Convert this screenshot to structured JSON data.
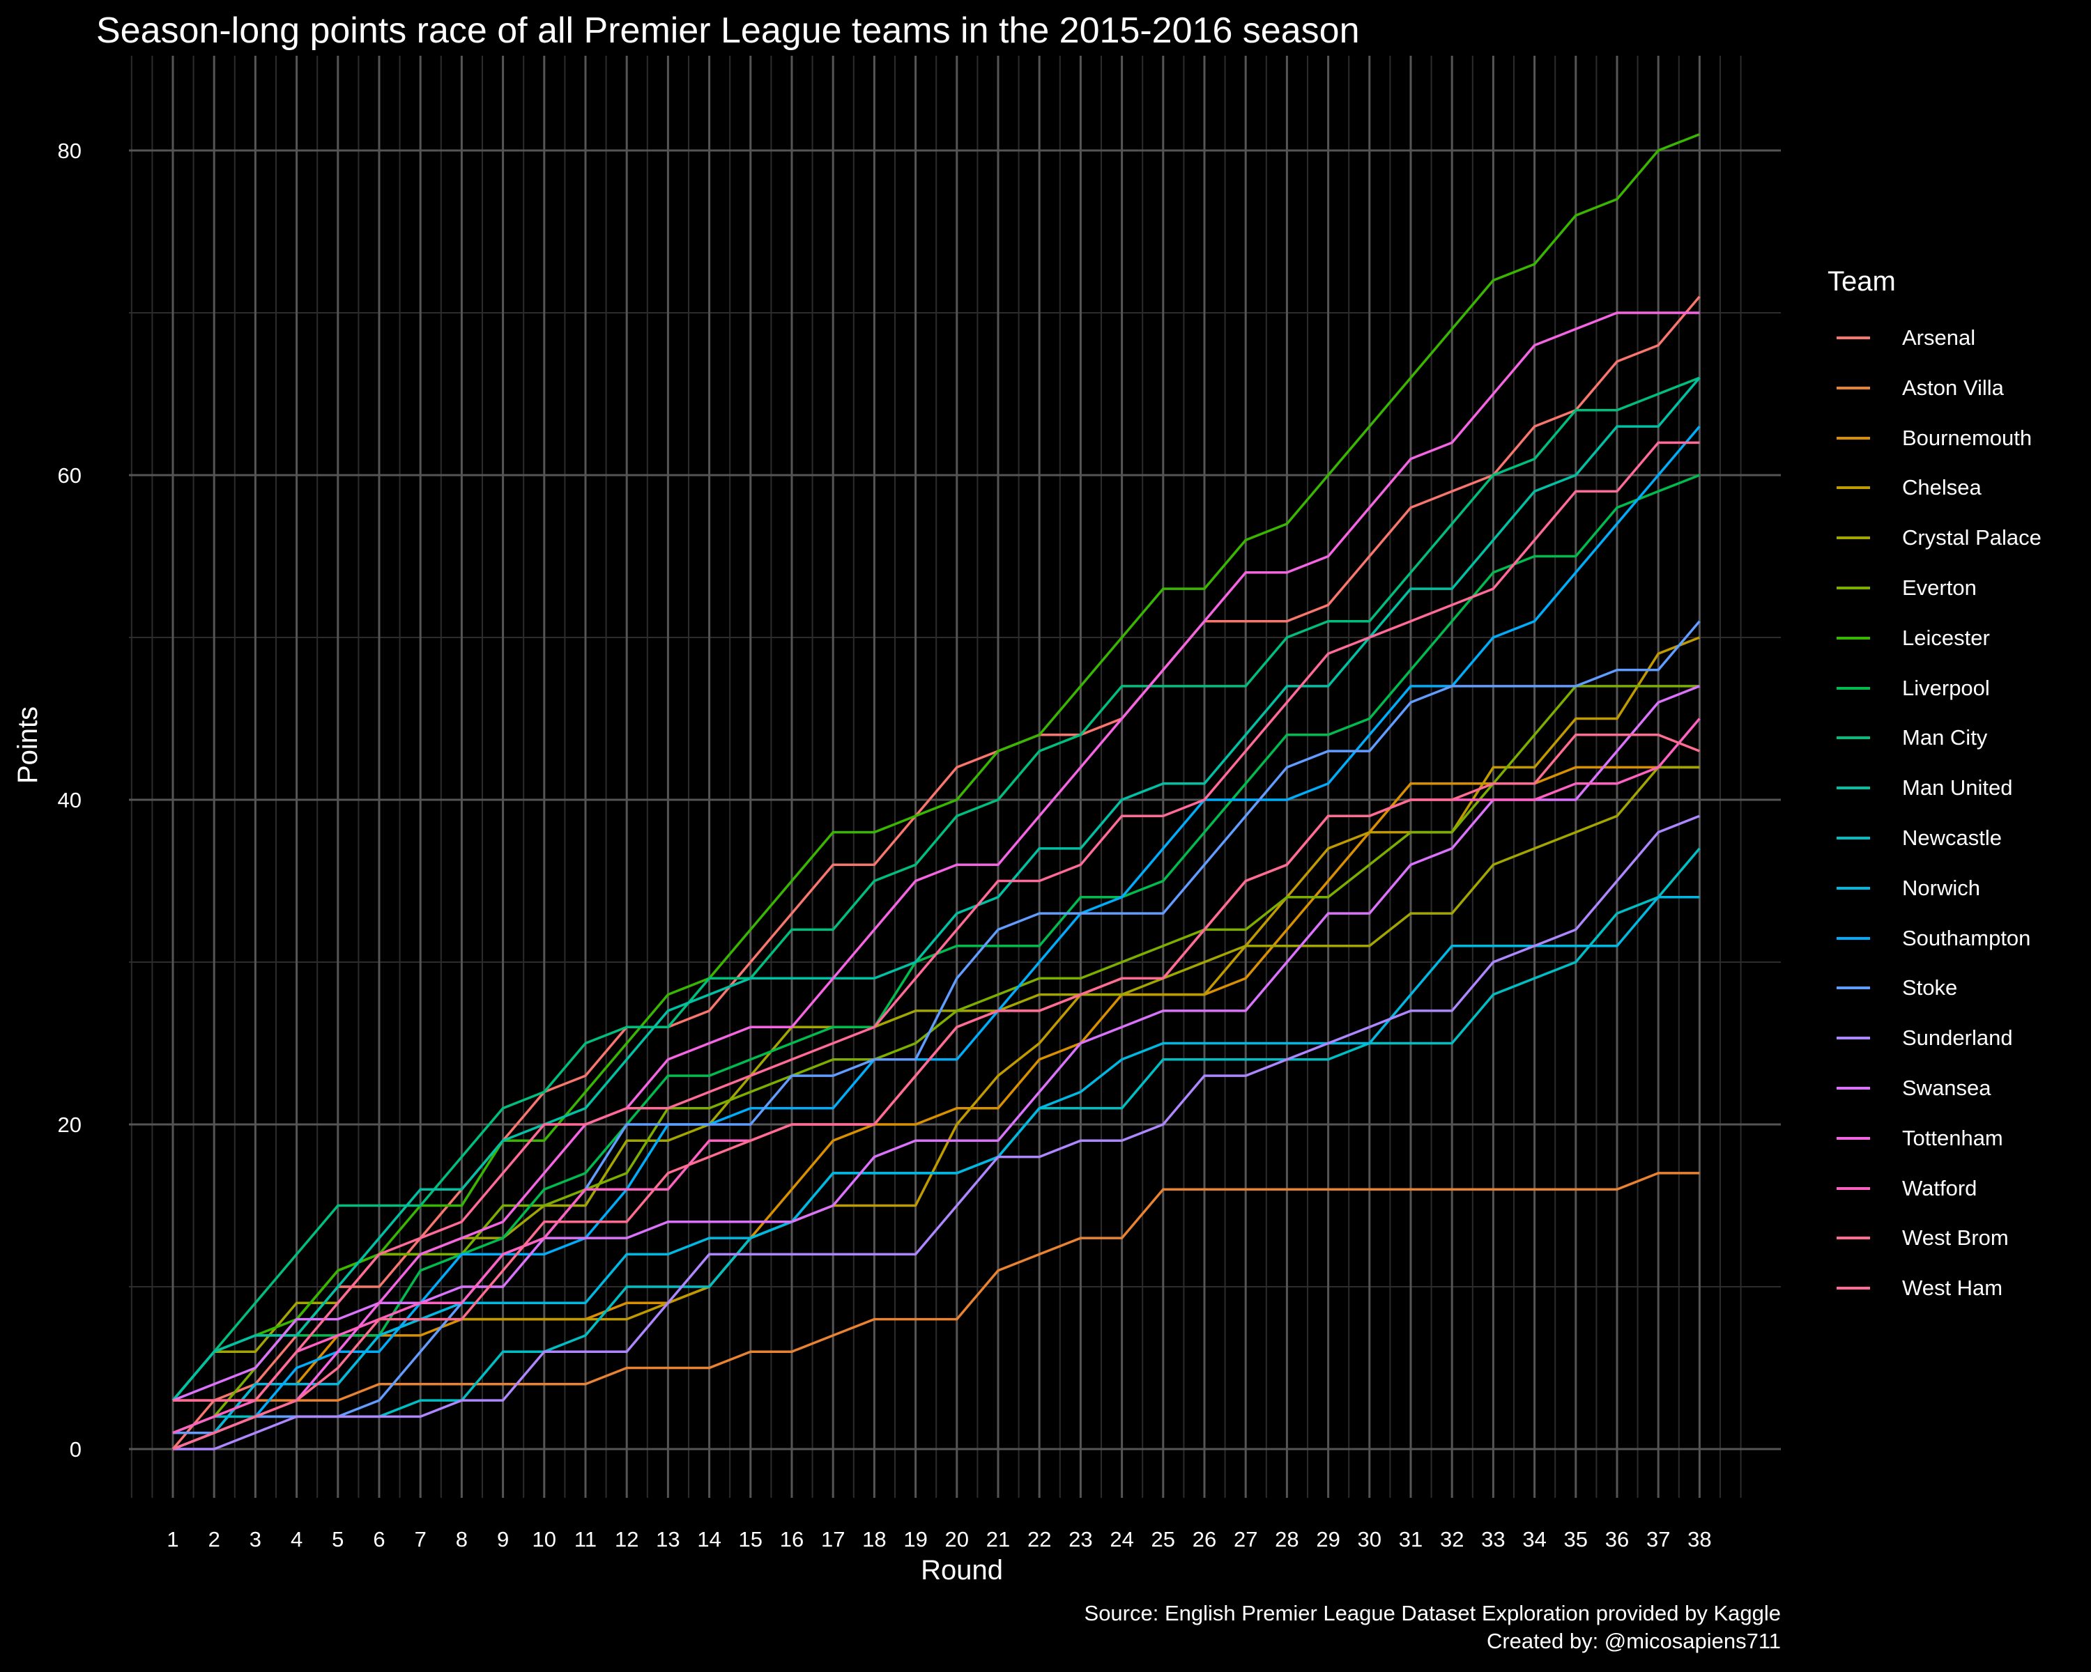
{
  "chart_data": {
    "type": "line",
    "title": "Season-long points race of all Premier League teams in the 2015-2016 season",
    "xlabel": "Round",
    "ylabel": "Points",
    "legend_title": "Team",
    "legend_position": "right",
    "grid": true,
    "xlim": [
      1,
      38
    ],
    "ylim": [
      0,
      81
    ],
    "y_ticks": [
      0,
      20,
      40,
      60,
      80
    ],
    "x": [
      1,
      2,
      3,
      4,
      5,
      6,
      7,
      8,
      9,
      10,
      11,
      12,
      13,
      14,
      15,
      16,
      17,
      18,
      19,
      20,
      21,
      22,
      23,
      24,
      25,
      26,
      27,
      28,
      29,
      30,
      31,
      32,
      33,
      34,
      35,
      36,
      37,
      38
    ],
    "series": [
      {
        "name": "Arsenal",
        "color": "#F8766D",
        "values": [
          0,
          3,
          4,
          7,
          10,
          10,
          13,
          16,
          19,
          22,
          23,
          26,
          26,
          27,
          30,
          33,
          36,
          36,
          39,
          42,
          43,
          44,
          44,
          45,
          48,
          51,
          51,
          51,
          52,
          55,
          58,
          59,
          60,
          63,
          64,
          67,
          68,
          71
        ]
      },
      {
        "name": "Aston Villa",
        "color": "#EA8331",
        "values": [
          3,
          3,
          3,
          3,
          3,
          4,
          4,
          4,
          4,
          4,
          4,
          5,
          5,
          5,
          6,
          6,
          7,
          8,
          8,
          8,
          11,
          12,
          13,
          13,
          16,
          16,
          16,
          16,
          16,
          16,
          16,
          16,
          16,
          16,
          16,
          16,
          17,
          17
        ]
      },
      {
        "name": "Bournemouth",
        "color": "#D89000",
        "values": [
          0,
          1,
          4,
          4,
          7,
          7,
          7,
          8,
          8,
          8,
          8,
          9,
          9,
          10,
          13,
          16,
          19,
          20,
          20,
          21,
          21,
          24,
          25,
          28,
          28,
          28,
          29,
          32,
          35,
          38,
          41,
          41,
          41,
          41,
          42,
          42,
          42,
          42
        ]
      },
      {
        "name": "Chelsea",
        "color": "#C09B00",
        "values": [
          1,
          1,
          4,
          4,
          4,
          7,
          8,
          8,
          8,
          8,
          8,
          8,
          9,
          10,
          13,
          14,
          15,
          15,
          15,
          20,
          23,
          25,
          28,
          28,
          28,
          28,
          31,
          34,
          37,
          38,
          38,
          38,
          42,
          42,
          45,
          45,
          49,
          50
        ]
      },
      {
        "name": "Crystal Palace",
        "color": "#A3A500",
        "values": [
          3,
          6,
          6,
          9,
          9,
          12,
          12,
          13,
          13,
          15,
          15,
          19,
          19,
          20,
          23,
          26,
          26,
          26,
          27,
          27,
          27,
          28,
          28,
          28,
          29,
          30,
          31,
          31,
          31,
          31,
          33,
          33,
          36,
          37,
          38,
          39,
          42,
          42
        ]
      },
      {
        "name": "Everton",
        "color": "#7CAE00",
        "values": [
          1,
          2,
          5,
          8,
          11,
          12,
          12,
          12,
          15,
          15,
          16,
          17,
          21,
          21,
          22,
          23,
          24,
          24,
          25,
          27,
          28,
          29,
          29,
          30,
          31,
          32,
          32,
          34,
          34,
          36,
          38,
          38,
          41,
          44,
          47,
          47,
          47,
          47
        ]
      },
      {
        "name": "Leicester",
        "color": "#39B600",
        "values": [
          3,
          6,
          7,
          8,
          11,
          12,
          15,
          15,
          19,
          19,
          22,
          25,
          28,
          29,
          32,
          35,
          38,
          38,
          39,
          40,
          43,
          44,
          47,
          50,
          53,
          53,
          56,
          57,
          60,
          63,
          66,
          69,
          72,
          73,
          76,
          77,
          80,
          81
        ]
      },
      {
        "name": "Liverpool",
        "color": "#00BB4E",
        "values": [
          3,
          6,
          7,
          7,
          7,
          7,
          11,
          12,
          13,
          16,
          17,
          20,
          23,
          23,
          24,
          25,
          26,
          26,
          30,
          31,
          31,
          31,
          34,
          34,
          35,
          38,
          41,
          44,
          44,
          45,
          48,
          51,
          54,
          55,
          55,
          58,
          59,
          60
        ]
      },
      {
        "name": "Man City",
        "color": "#00BF7D",
        "values": [
          3,
          6,
          9,
          12,
          15,
          15,
          15,
          18,
          21,
          22,
          25,
          26,
          26,
          29,
          29,
          32,
          32,
          35,
          36,
          39,
          40,
          43,
          44,
          47,
          47,
          47,
          47,
          50,
          51,
          51,
          54,
          57,
          60,
          61,
          64,
          64,
          65,
          66
        ]
      },
      {
        "name": "Man United",
        "color": "#00C1A3",
        "values": [
          3,
          6,
          7,
          7,
          10,
          13,
          16,
          16,
          19,
          20,
          21,
          24,
          27,
          28,
          29,
          29,
          29,
          29,
          30,
          33,
          34,
          37,
          37,
          40,
          41,
          41,
          44,
          47,
          47,
          50,
          53,
          53,
          56,
          59,
          60,
          63,
          63,
          66
        ]
      },
      {
        "name": "Newcastle",
        "color": "#00BFC4",
        "values": [
          1,
          2,
          2,
          2,
          2,
          2,
          3,
          3,
          6,
          6,
          7,
          10,
          10,
          10,
          13,
          14,
          17,
          17,
          17,
          17,
          18,
          21,
          21,
          21,
          24,
          24,
          24,
          24,
          24,
          25,
          25,
          25,
          28,
          29,
          30,
          33,
          34,
          37
        ]
      },
      {
        "name": "Norwich",
        "color": "#00B9E3",
        "values": [
          0,
          1,
          4,
          4,
          4,
          7,
          8,
          9,
          9,
          9,
          9,
          12,
          12,
          13,
          13,
          14,
          17,
          17,
          17,
          17,
          18,
          21,
          22,
          24,
          25,
          25,
          25,
          25,
          25,
          25,
          28,
          31,
          31,
          31,
          31,
          31,
          34,
          34
        ]
      },
      {
        "name": "Southampton",
        "color": "#00ADFA",
        "values": [
          0,
          1,
          2,
          5,
          6,
          6,
          9,
          12,
          12,
          12,
          13,
          16,
          20,
          20,
          21,
          21,
          21,
          24,
          24,
          24,
          27,
          30,
          33,
          34,
          37,
          40,
          40,
          40,
          41,
          44,
          47,
          47,
          50,
          51,
          54,
          57,
          60,
          63
        ]
      },
      {
        "name": "Stoke",
        "color": "#619CFF",
        "values": [
          1,
          1,
          2,
          2,
          2,
          3,
          6,
          9,
          12,
          13,
          16,
          20,
          20,
          20,
          20,
          23,
          23,
          24,
          24,
          29,
          32,
          33,
          33,
          33,
          33,
          36,
          39,
          42,
          43,
          43,
          46,
          47,
          47,
          47,
          47,
          48,
          48,
          51
        ]
      },
      {
        "name": "Sunderland",
        "color": "#AE87FF",
        "values": [
          0,
          0,
          1,
          2,
          2,
          2,
          2,
          3,
          3,
          6,
          6,
          6,
          9,
          12,
          12,
          12,
          12,
          12,
          12,
          15,
          18,
          18,
          19,
          19,
          20,
          23,
          23,
          24,
          25,
          26,
          27,
          27,
          30,
          31,
          32,
          35,
          38,
          39
        ]
      },
      {
        "name": "Swansea",
        "color": "#DB72FB",
        "values": [
          3,
          4,
          5,
          8,
          8,
          9,
          9,
          10,
          10,
          13,
          13,
          13,
          14,
          14,
          14,
          14,
          15,
          18,
          19,
          19,
          19,
          22,
          25,
          26,
          27,
          27,
          27,
          30,
          33,
          33,
          36,
          37,
          40,
          40,
          40,
          43,
          46,
          47
        ]
      },
      {
        "name": "Tottenham",
        "color": "#F564E3",
        "values": [
          0,
          1,
          2,
          3,
          6,
          9,
          12,
          13,
          14,
          17,
          20,
          21,
          24,
          25,
          26,
          26,
          29,
          32,
          35,
          36,
          36,
          39,
          42,
          45,
          48,
          51,
          54,
          54,
          55,
          58,
          61,
          62,
          65,
          68,
          69,
          70,
          70,
          70
        ]
      },
      {
        "name": "Watford",
        "color": "#FF61C3",
        "values": [
          1,
          2,
          3,
          6,
          7,
          8,
          9,
          9,
          12,
          13,
          16,
          16,
          16,
          19,
          19,
          20,
          20,
          20,
          23,
          26,
          27,
          27,
          28,
          29,
          29,
          32,
          35,
          36,
          39,
          39,
          40,
          40,
          40,
          40,
          41,
          41,
          42,
          45
        ]
      },
      {
        "name": "West Brom",
        "color": "#FF6C91",
        "values": [
          0,
          1,
          2,
          3,
          5,
          8,
          8,
          8,
          11,
          14,
          14,
          14,
          17,
          18,
          19,
          20,
          20,
          20,
          23,
          26,
          27,
          27,
          28,
          29,
          29,
          32,
          35,
          36,
          39,
          39,
          40,
          40,
          41,
          41,
          44,
          44,
          44,
          43
        ]
      },
      {
        "name": "West Ham",
        "color": "#FF6A98",
        "values": [
          3,
          3,
          3,
          6,
          9,
          12,
          13,
          14,
          17,
          20,
          20,
          21,
          21,
          22,
          23,
          24,
          25,
          26,
          29,
          32,
          35,
          35,
          36,
          39,
          39,
          40,
          43,
          46,
          49,
          50,
          51,
          52,
          53,
          56,
          59,
          59,
          62,
          62
        ]
      }
    ],
    "caption": [
      "Source: English Premier League Dataset Exploration provided by Kaggle",
      "Created by: @micosapiens711"
    ]
  }
}
